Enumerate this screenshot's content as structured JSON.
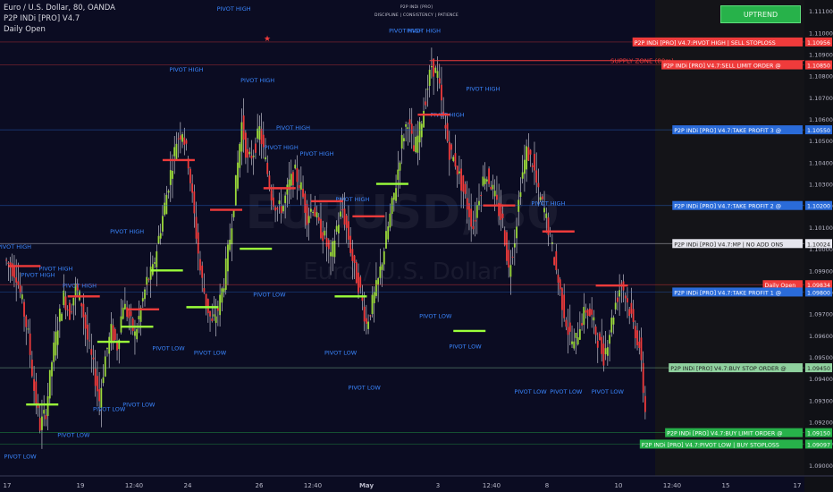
{
  "header": {
    "symbol_line": "Euro / U.S. Dollar, 80, OANDA",
    "indicator_line": "P2P INDi [PRO] V4.7",
    "daily_open_line": "Daily Open",
    "center_title": "P2P INDi [PRO]",
    "center_subtitle": "DISCIPLINE | CONSISTENCY | PATIENCE"
  },
  "trend_badge": "UPTREND",
  "watermark": {
    "symbol": "EURUSD, 80",
    "name": "Euro / U.S. Dollar"
  },
  "colors": {
    "background": "#0b0c22",
    "right_panel": "#141418",
    "bull": "#9bd93a",
    "bear": "#ef3b3b",
    "pivot_text": "#3a86ff",
    "grid": "#2a2d44",
    "up_badge": "#27b24a"
  },
  "chart_data": {
    "type": "candlestick",
    "y_range": [
      1.0895,
      1.1115
    ],
    "y_ticks": [
      "1.11100",
      "1.11000",
      "1.10900",
      "1.10800",
      "1.10700",
      "1.10600",
      "1.10500",
      "1.10400",
      "1.10300",
      "1.10200",
      "1.10100",
      "1.10000",
      "1.09900",
      "1.09800",
      "1.09700",
      "1.09600",
      "1.09500",
      "1.09400",
      "1.09300",
      "1.09200",
      "1.09100",
      "1.09000"
    ],
    "x_ticks": [
      "17",
      "19",
      "12:40",
      "24",
      "26",
      "12:40",
      "May",
      "3",
      "12:40",
      "8",
      "10",
      "12:40",
      "15",
      "17"
    ],
    "close_path": [
      1.0992,
      1.0988,
      1.0975,
      1.096,
      1.0935,
      1.0918,
      1.0925,
      1.0948,
      1.0965,
      1.0978,
      1.097,
      1.0982,
      1.0975,
      1.0958,
      1.0945,
      1.093,
      1.095,
      1.0962,
      1.0955,
      1.0975,
      1.0968,
      1.096,
      1.0972,
      1.0985,
      1.099,
      1.1005,
      1.102,
      1.1035,
      1.105,
      1.1055,
      1.104,
      1.1015,
      1.099,
      1.0975,
      1.0965,
      1.0972,
      1.0985,
      1.1005,
      1.103,
      1.1058,
      1.104,
      1.1045,
      1.1055,
      1.104,
      1.1025,
      1.1018,
      1.102,
      1.103,
      1.1035,
      1.1028,
      1.1015,
      1.102,
      1.101,
      1.1005,
      1.0995,
      1.101,
      1.1018,
      1.1005,
      1.099,
      1.098,
      1.0965,
      1.0975,
      1.0985,
      1.1,
      1.1015,
      1.103,
      1.105,
      1.106,
      1.1045,
      1.1055,
      1.107,
      1.1085,
      1.108,
      1.106,
      1.1045,
      1.104,
      1.103,
      1.102,
      1.101,
      1.1025,
      1.1035,
      1.103,
      1.102,
      1.1012,
      1.099,
      1.1005,
      1.103,
      1.1045,
      1.104,
      1.1025,
      1.1018,
      1.1005,
      1.099,
      1.0975,
      1.0962,
      1.0955,
      1.0965,
      1.0972,
      1.0968,
      1.0958,
      1.095,
      1.0962,
      1.0975,
      1.0985,
      1.0975,
      1.0965,
      1.0955,
      1.0925
    ],
    "support_resistance": [
      {
        "label": "P2P INDi [PRO] V4.7:PIVOT HIGH | SELL STOPLOSS",
        "price": "1.10956",
        "value": 1.10956,
        "color": "#ef3b3b"
      },
      {
        "label": "P2P INDi [PRO] V4.7:SELL LIMIT ORDER @",
        "price": "1.10850",
        "value": 1.1085,
        "color": "#ef3b3b"
      },
      {
        "label": "P2P INDi [PRO] V4.7:TAKE PROFIT 3 @",
        "price": "1.10550",
        "value": 1.1055,
        "color": "#2a6bd9"
      },
      {
        "label": "P2P INDi [PRO] V4.7:TAKE PROFIT 2 @",
        "price": "1.10200",
        "value": 1.102,
        "color": "#2a6bd9"
      },
      {
        "label": "P2P INDi [PRO] V4.7:MP | NO ADD ONS",
        "price": "1.10024",
        "value": 1.10024,
        "color": "#e6e6ee"
      },
      {
        "label": "Daily Open",
        "price": "1.09834",
        "value": 1.09834,
        "color": "#ef3b3b"
      },
      {
        "label": "P2P INDi [PRO] V4.7:TAKE PROFIT 1 @",
        "price": "1.09800",
        "value": 1.098,
        "color": "#2a6bd9"
      },
      {
        "label": "P2P INDi [PRO] V4.7:BUY STOP ORDER @",
        "price": "1.09450",
        "value": 1.0945,
        "color": "#8fd19e"
      },
      {
        "label": "P2P INDi [PRO] V4.7:BUY LIMIT ORDER @",
        "price": "1.09150",
        "value": 1.0915,
        "color": "#27b24a"
      },
      {
        "label": "P2P INDi [PRO] V4.7:PIVOT LOW | BUY STOPLOSS",
        "price": "1.09097",
        "value": 1.09097,
        "color": "#27b24a"
      }
    ],
    "supply_zone": {
      "label": "SUPPLY ZONE (80m)",
      "value": 1.1087
    },
    "pivot_labels": [
      {
        "text": "PIVOT HIGH",
        "idx": 1,
        "value": 1.1
      },
      {
        "text": "PIVOT HIGH",
        "idx": 5,
        "value": 1.0987
      },
      {
        "text": "PIVOT HIGH",
        "idx": 8,
        "value": 1.099
      },
      {
        "text": "PIVOT HIGH",
        "idx": 12,
        "value": 1.0982
      },
      {
        "text": "PIVOT HIGH",
        "idx": 20,
        "value": 1.1007
      },
      {
        "text": "PIVOT HIGH",
        "idx": 30,
        "value": 1.1082
      },
      {
        "text": "PIVOT HIGH",
        "idx": 38,
        "value": 1.111
      },
      {
        "text": "PIVOT HIGH",
        "idx": 42,
        "value": 1.1077
      },
      {
        "text": "PIVOT HIGH",
        "idx": 48,
        "value": 1.1055
      },
      {
        "text": "PIVOT HIGH",
        "idx": 46,
        "value": 1.1046
      },
      {
        "text": "PIVOT HIGH",
        "idx": 52,
        "value": 1.1043
      },
      {
        "text": "PIVOT HIGH",
        "idx": 58,
        "value": 1.1022
      },
      {
        "text": "PIVOT HIGH",
        "idx": 67,
        "value": 1.11
      },
      {
        "text": "PIVOT HIGH",
        "idx": 70,
        "value": 1.11
      },
      {
        "text": "PIVOT HIGH",
        "idx": 74,
        "value": 1.1061
      },
      {
        "text": "PIVOT HIGH",
        "idx": 80,
        "value": 1.1073
      },
      {
        "text": "PIVOT HIGH",
        "idx": 91,
        "value": 1.102
      },
      {
        "text": "PIVOT LOW",
        "idx": 2,
        "value": 1.0903
      },
      {
        "text": "PIVOT LOW",
        "idx": 11,
        "value": 1.0913
      },
      {
        "text": "PIVOT LOW",
        "idx": 17,
        "value": 1.0925
      },
      {
        "text": "PIVOT LOW",
        "idx": 22,
        "value": 1.0927
      },
      {
        "text": "PIVOT LOW",
        "idx": 27,
        "value": 1.0953
      },
      {
        "text": "PIVOT LOW",
        "idx": 34,
        "value": 1.0951
      },
      {
        "text": "PIVOT LOW",
        "idx": 44,
        "value": 1.0978
      },
      {
        "text": "PIVOT LOW",
        "idx": 56,
        "value": 1.0951
      },
      {
        "text": "PIVOT LOW",
        "idx": 60,
        "value": 1.0935
      },
      {
        "text": "PIVOT LOW",
        "idx": 72,
        "value": 1.0968
      },
      {
        "text": "PIVOT LOW",
        "idx": 77,
        "value": 1.0954
      },
      {
        "text": "PIVOT LOW",
        "idx": 88,
        "value": 1.0933
      },
      {
        "text": "PIVOT LOW",
        "idx": 94,
        "value": 1.0933
      },
      {
        "text": "PIVOT LOW",
        "idx": 101,
        "value": 1.0933
      }
    ]
  }
}
